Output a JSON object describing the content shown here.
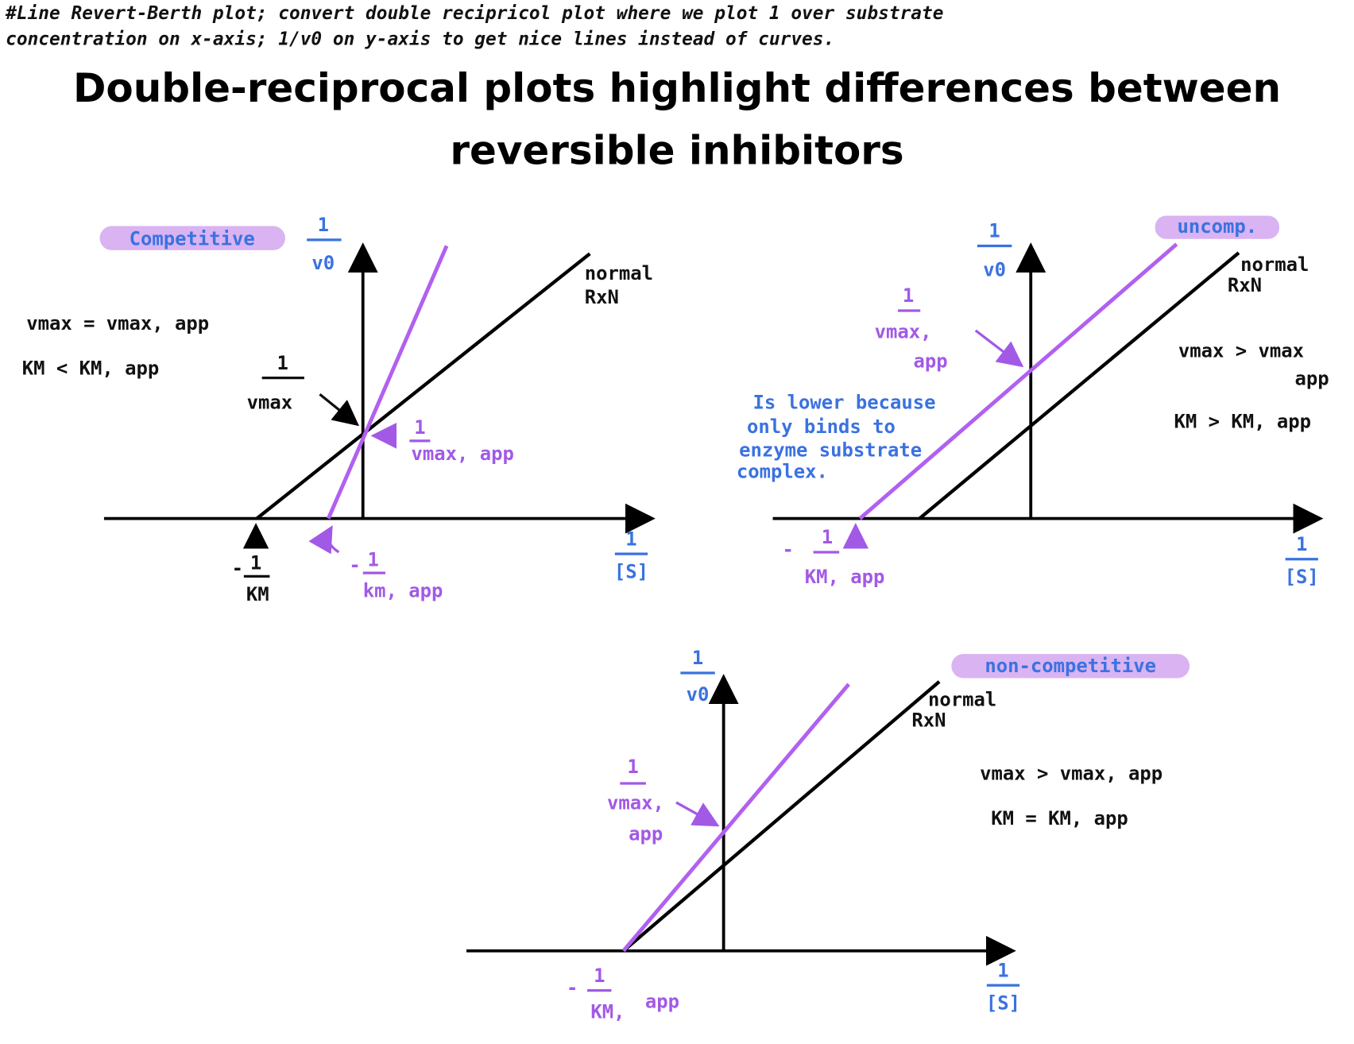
{
  "note": {
    "lines": [
      "#Line Revert-Berth plot; convert double recipricol plot where we plot 1 over substrate",
      "concentration on x-axis; 1/v0 on y-axis to get nice lines instead of curves."
    ]
  },
  "title": {
    "lines": [
      "Double-reciprocal plots highlight differences between",
      "reversible inhibitors"
    ]
  },
  "competitive": {
    "tag": "Competitive",
    "y_axis": {
      "numerator": "1",
      "denominator": "v0"
    },
    "x_axis": {
      "numerator": "1",
      "denominator": "[S]"
    },
    "line_label": [
      "normal",
      "RxN"
    ],
    "relations": [
      "vmax = vmax, app",
      "KM < KM, app"
    ],
    "intercept_normal": {
      "numerator": "1",
      "denominator": "vmax"
    },
    "intercept_inhibited": {
      "numerator": "1",
      "denominator": "vmax, app"
    },
    "x_intercept_normal": {
      "sign": "-",
      "numerator": "1",
      "denominator": "KM"
    },
    "x_intercept_inhibited": {
      "sign": "-",
      "numerator": "1",
      "denominator": "km, app"
    }
  },
  "uncompetitive": {
    "tag": "uncomp.",
    "y_axis": {
      "numerator": "1",
      "denominator": "v0"
    },
    "x_axis": {
      "numerator": "1",
      "denominator": "[S]"
    },
    "line_label": [
      "normal",
      "RxN"
    ],
    "relations": [
      "vmax > vmax",
      "app",
      "KM > KM, app"
    ],
    "intercept_inhibited": {
      "numerator": "1",
      "denominator": "vmax,",
      "extra": "app"
    },
    "explanation": [
      "Is lower because",
      "only binds to",
      "enzyme substrate",
      "complex."
    ],
    "x_intercept_inhibited": {
      "sign": "-",
      "numerator": "1",
      "denominator": "KM, app"
    }
  },
  "noncompetitive": {
    "tag": "non-competitive",
    "y_axis": {
      "numerator": "1",
      "denominator": "v0"
    },
    "x_axis": {
      "numerator": "1",
      "denominator": "[S]"
    },
    "line_label": [
      "normal",
      "RxN"
    ],
    "relations": [
      "vmax > vmax, app",
      "KM = KM, app"
    ],
    "intercept_inhibited": {
      "numerator": "1",
      "denominator": "vmax,",
      "extra": "app"
    },
    "x_intercept": {
      "sign": "-",
      "numerator": "1",
      "denominator": "KM,",
      "extra": "app"
    }
  }
}
